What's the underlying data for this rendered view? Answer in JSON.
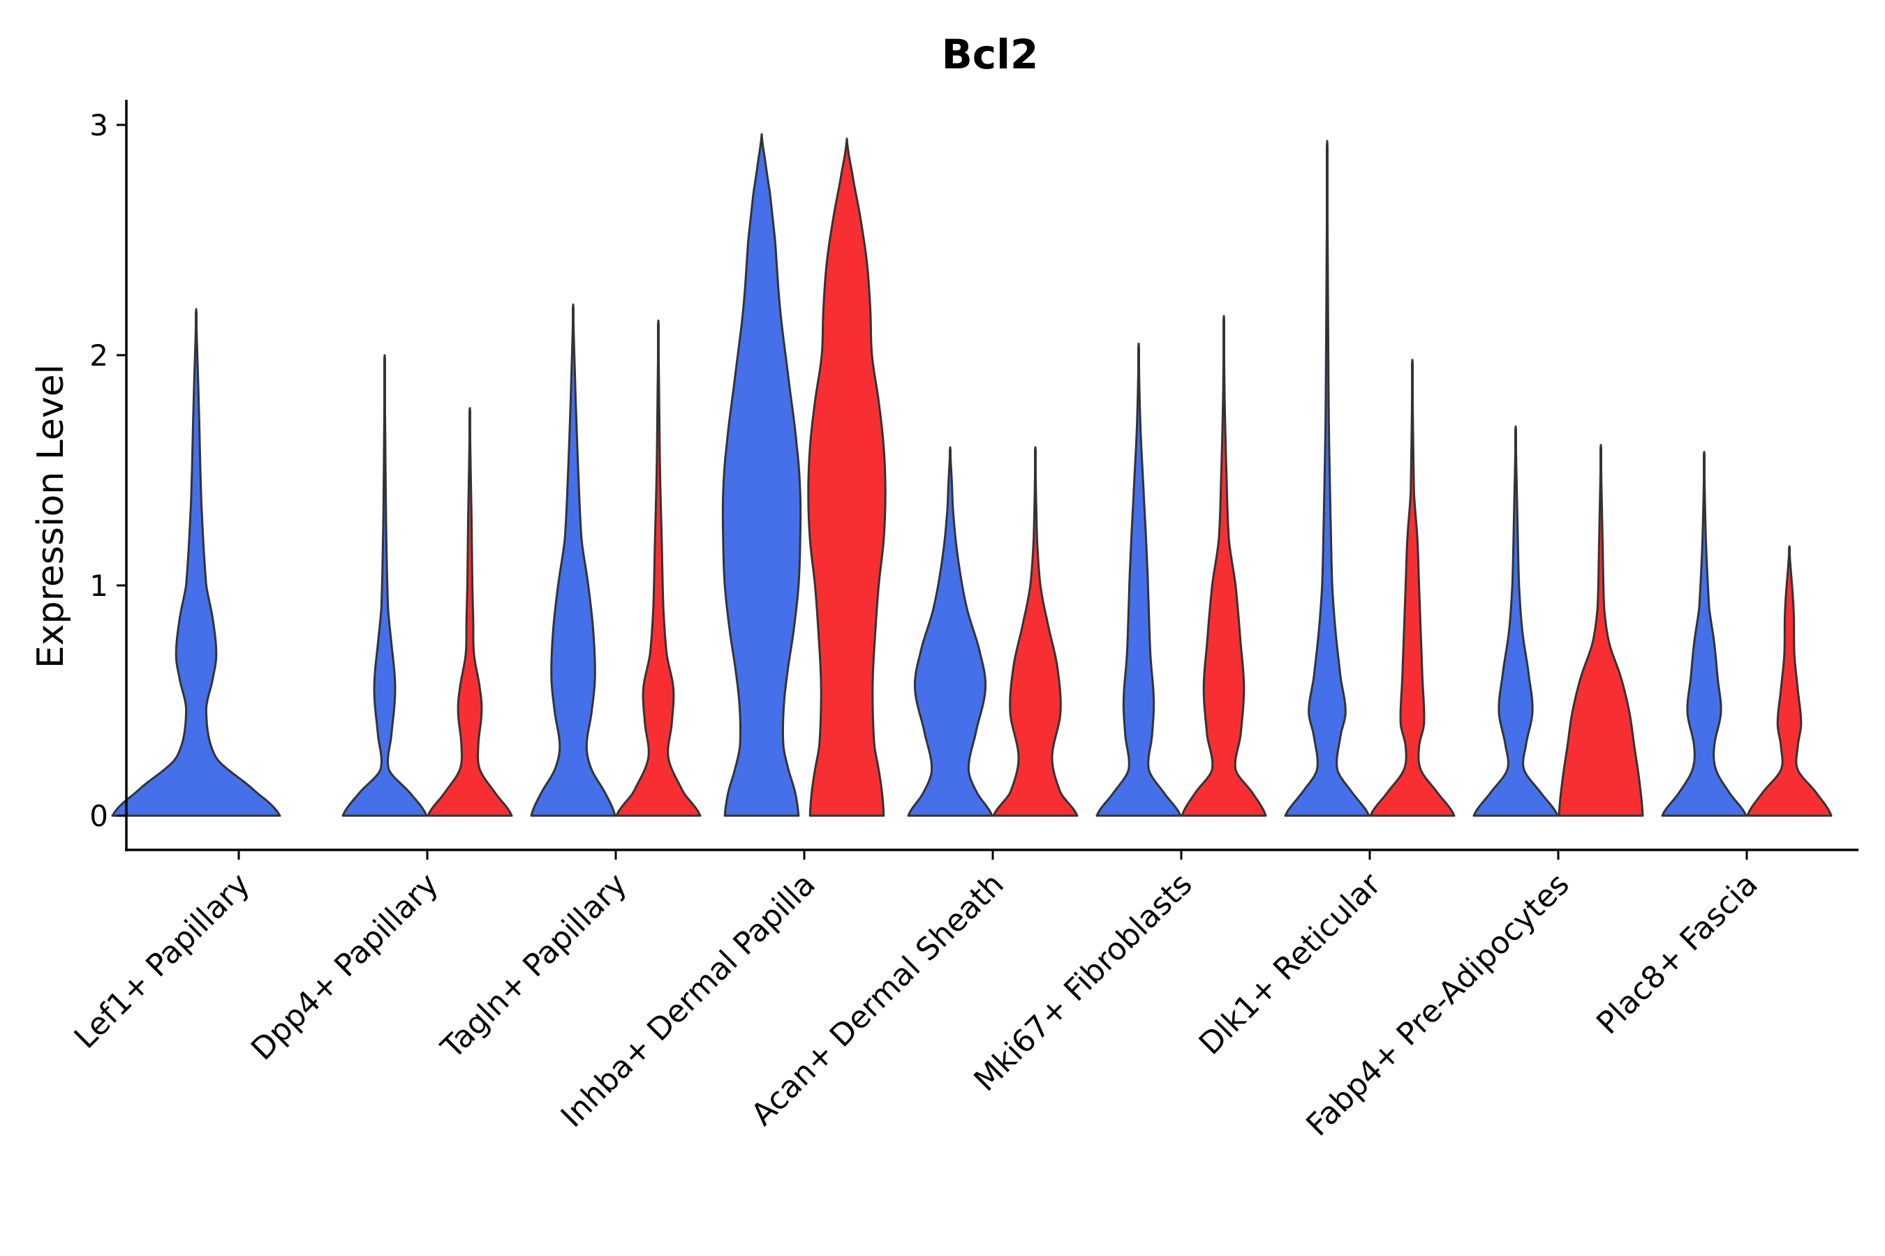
{
  "chart_data": {
    "type": "violin",
    "title": "Bcl2",
    "xlabel": "",
    "ylabel": "Expression Level",
    "ylim": [
      -0.15,
      3.12
    ],
    "yticks": [
      0,
      1,
      2,
      3
    ],
    "categories": [
      "Lef1+ Papillary",
      "Dpp4+ Papillary",
      "Tagln+ Papillary",
      "Inhba+ Dermal Papilla",
      "Acan+ Dermal Sheath",
      "Mki67+ Fibroblasts",
      "Dlk1+ Reticular",
      "Fabp4+ Pre-Adipocytes",
      "Plac8+ Fascia"
    ],
    "colors": {
      "blue": "#4570EA",
      "red": "#F72F33"
    },
    "violins": [
      {
        "category": "Lef1+ Papillary",
        "color": "blue",
        "max": 2.2,
        "profile": [
          [
            0,
            1.0
          ],
          [
            0.1,
            0.72
          ],
          [
            0.25,
            0.24
          ],
          [
            0.45,
            0.12
          ],
          [
            0.6,
            0.2
          ],
          [
            0.7,
            0.24
          ],
          [
            0.85,
            0.2
          ],
          [
            1.0,
            0.12
          ],
          [
            1.3,
            0.07
          ],
          [
            1.5,
            0.05
          ],
          [
            1.8,
            0.03
          ],
          [
            2.2,
            0
          ]
        ]
      },
      {
        "category": "Dpp4+ Papillary",
        "color": "blue",
        "max": 2.0,
        "profile": [
          [
            0,
            0.5
          ],
          [
            0.1,
            0.3
          ],
          [
            0.2,
            0.05
          ],
          [
            0.35,
            0.08
          ],
          [
            0.5,
            0.12
          ],
          [
            0.6,
            0.12
          ],
          [
            0.75,
            0.08
          ],
          [
            0.9,
            0.04
          ],
          [
            1.2,
            0.02
          ],
          [
            1.5,
            0.01
          ],
          [
            2.0,
            0
          ]
        ]
      },
      {
        "category": "Dpp4+ Papillary",
        "color": "red",
        "max": 1.77,
        "profile": [
          [
            0,
            0.5
          ],
          [
            0.1,
            0.3
          ],
          [
            0.2,
            0.12
          ],
          [
            0.3,
            0.1
          ],
          [
            0.45,
            0.14
          ],
          [
            0.55,
            0.12
          ],
          [
            0.7,
            0.05
          ],
          [
            0.85,
            0.04
          ],
          [
            1.0,
            0.03
          ],
          [
            1.3,
            0.02
          ],
          [
            1.5,
            0.01
          ],
          [
            1.77,
            0
          ]
        ]
      },
      {
        "category": "Tagln+ Papillary",
        "color": "blue",
        "max": 2.22,
        "profile": [
          [
            0,
            0.5
          ],
          [
            0.1,
            0.38
          ],
          [
            0.2,
            0.22
          ],
          [
            0.3,
            0.16
          ],
          [
            0.45,
            0.22
          ],
          [
            0.6,
            0.26
          ],
          [
            0.8,
            0.24
          ],
          [
            1.0,
            0.18
          ],
          [
            1.2,
            0.1
          ],
          [
            1.5,
            0.06
          ],
          [
            1.8,
            0.03
          ],
          [
            2.22,
            0
          ]
        ]
      },
      {
        "category": "Tagln+ Papillary",
        "color": "red",
        "max": 2.15,
        "profile": [
          [
            0,
            0.5
          ],
          [
            0.1,
            0.3
          ],
          [
            0.25,
            0.12
          ],
          [
            0.4,
            0.16
          ],
          [
            0.55,
            0.18
          ],
          [
            0.7,
            0.1
          ],
          [
            0.9,
            0.06
          ],
          [
            1.2,
            0.04
          ],
          [
            1.5,
            0.02
          ],
          [
            1.8,
            0.01
          ],
          [
            2.15,
            0
          ]
        ]
      },
      {
        "category": "Inhba+ Dermal Papilla",
        "color": "blue",
        "max": 2.96,
        "profile": [
          [
            0,
            0.44
          ],
          [
            0.1,
            0.4
          ],
          [
            0.2,
            0.32
          ],
          [
            0.3,
            0.26
          ],
          [
            0.45,
            0.26
          ],
          [
            0.6,
            0.3
          ],
          [
            0.8,
            0.38
          ],
          [
            1.0,
            0.44
          ],
          [
            1.2,
            0.46
          ],
          [
            1.4,
            0.46
          ],
          [
            1.6,
            0.42
          ],
          [
            1.9,
            0.32
          ],
          [
            2.2,
            0.22
          ],
          [
            2.5,
            0.16
          ],
          [
            2.7,
            0.1
          ],
          [
            2.85,
            0.04
          ],
          [
            2.96,
            0
          ]
        ]
      },
      {
        "category": "Inhba+ Dermal Papilla",
        "color": "red",
        "max": 2.94,
        "profile": [
          [
            0,
            0.44
          ],
          [
            0.1,
            0.42
          ],
          [
            0.2,
            0.38
          ],
          [
            0.3,
            0.33
          ],
          [
            0.45,
            0.31
          ],
          [
            0.6,
            0.31
          ],
          [
            0.8,
            0.34
          ],
          [
            1.0,
            0.38
          ],
          [
            1.2,
            0.44
          ],
          [
            1.4,
            0.46
          ],
          [
            1.6,
            0.44
          ],
          [
            1.8,
            0.38
          ],
          [
            2.0,
            0.3
          ],
          [
            2.2,
            0.28
          ],
          [
            2.4,
            0.24
          ],
          [
            2.6,
            0.16
          ],
          [
            2.8,
            0.06
          ],
          [
            2.94,
            0
          ]
        ]
      },
      {
        "category": "Acan+ Dermal Sheath",
        "color": "blue",
        "max": 1.6,
        "profile": [
          [
            0,
            0.5
          ],
          [
            0.1,
            0.32
          ],
          [
            0.2,
            0.22
          ],
          [
            0.35,
            0.3
          ],
          [
            0.55,
            0.42
          ],
          [
            0.7,
            0.36
          ],
          [
            0.9,
            0.2
          ],
          [
            1.1,
            0.1
          ],
          [
            1.3,
            0.04
          ],
          [
            1.45,
            0.02
          ],
          [
            1.6,
            0
          ]
        ]
      },
      {
        "category": "Acan+ Dermal Sheath",
        "color": "red",
        "max": 1.6,
        "profile": [
          [
            0,
            0.5
          ],
          [
            0.1,
            0.3
          ],
          [
            0.25,
            0.2
          ],
          [
            0.45,
            0.3
          ],
          [
            0.65,
            0.26
          ],
          [
            0.85,
            0.14
          ],
          [
            1.0,
            0.06
          ],
          [
            1.2,
            0.02
          ],
          [
            1.6,
            0
          ]
        ]
      },
      {
        "category": "Mki67+ Fibroblasts",
        "color": "blue",
        "max": 2.05,
        "profile": [
          [
            0,
            0.5
          ],
          [
            0.1,
            0.3
          ],
          [
            0.2,
            0.12
          ],
          [
            0.35,
            0.16
          ],
          [
            0.5,
            0.18
          ],
          [
            0.7,
            0.14
          ],
          [
            0.9,
            0.12
          ],
          [
            1.1,
            0.1
          ],
          [
            1.4,
            0.06
          ],
          [
            1.7,
            0.02
          ],
          [
            2.05,
            0
          ]
        ]
      },
      {
        "category": "Mki67+ Fibroblasts",
        "color": "red",
        "max": 2.17,
        "profile": [
          [
            0,
            0.5
          ],
          [
            0.1,
            0.34
          ],
          [
            0.2,
            0.14
          ],
          [
            0.35,
            0.2
          ],
          [
            0.55,
            0.24
          ],
          [
            0.75,
            0.2
          ],
          [
            1.0,
            0.14
          ],
          [
            1.2,
            0.06
          ],
          [
            1.5,
            0.03
          ],
          [
            1.8,
            0.01
          ],
          [
            2.17,
            0
          ]
        ]
      },
      {
        "category": "Dlk1+ Reticular",
        "color": "blue",
        "max": 2.93,
        "profile": [
          [
            0,
            0.5
          ],
          [
            0.1,
            0.3
          ],
          [
            0.2,
            0.12
          ],
          [
            0.35,
            0.16
          ],
          [
            0.45,
            0.22
          ],
          [
            0.6,
            0.16
          ],
          [
            0.8,
            0.1
          ],
          [
            1.0,
            0.06
          ],
          [
            1.3,
            0.04
          ],
          [
            1.7,
            0.02
          ],
          [
            2.2,
            0.01
          ],
          [
            2.93,
            0
          ]
        ]
      },
      {
        "category": "Dlk1+ Reticular",
        "color": "red",
        "max": 1.98,
        "profile": [
          [
            0,
            0.5
          ],
          [
            0.1,
            0.3
          ],
          [
            0.2,
            0.1
          ],
          [
            0.3,
            0.08
          ],
          [
            0.4,
            0.14
          ],
          [
            0.6,
            0.12
          ],
          [
            0.8,
            0.1
          ],
          [
            1.0,
            0.08
          ],
          [
            1.2,
            0.06
          ],
          [
            1.4,
            0.02
          ],
          [
            1.98,
            0
          ]
        ]
      },
      {
        "category": "Fabp4+ Pre-Adipocytes",
        "color": "blue",
        "max": 1.69,
        "profile": [
          [
            0,
            0.5
          ],
          [
            0.1,
            0.3
          ],
          [
            0.2,
            0.1
          ],
          [
            0.3,
            0.12
          ],
          [
            0.45,
            0.2
          ],
          [
            0.6,
            0.16
          ],
          [
            0.8,
            0.08
          ],
          [
            1.0,
            0.04
          ],
          [
            1.3,
            0.02
          ],
          [
            1.69,
            0
          ]
        ]
      },
      {
        "category": "Fabp4+ Pre-Adipocytes",
        "color": "red",
        "max": 1.61,
        "profile": [
          [
            0,
            0.5
          ],
          [
            0.15,
            0.46
          ],
          [
            0.3,
            0.4
          ],
          [
            0.45,
            0.34
          ],
          [
            0.6,
            0.24
          ],
          [
            0.75,
            0.1
          ],
          [
            0.9,
            0.04
          ],
          [
            1.2,
            0.02
          ],
          [
            1.61,
            0
          ]
        ]
      },
      {
        "category": "Plac8+ Fascia",
        "color": "blue",
        "max": 1.58,
        "profile": [
          [
            0,
            0.5
          ],
          [
            0.1,
            0.3
          ],
          [
            0.2,
            0.14
          ],
          [
            0.3,
            0.12
          ],
          [
            0.45,
            0.2
          ],
          [
            0.6,
            0.16
          ],
          [
            0.75,
            0.12
          ],
          [
            0.9,
            0.06
          ],
          [
            1.2,
            0.02
          ],
          [
            1.58,
            0
          ]
        ]
      },
      {
        "category": "Plac8+ Fascia",
        "color": "red",
        "max": 1.17,
        "profile": [
          [
            0,
            0.5
          ],
          [
            0.1,
            0.32
          ],
          [
            0.2,
            0.1
          ],
          [
            0.3,
            0.1
          ],
          [
            0.4,
            0.14
          ],
          [
            0.55,
            0.1
          ],
          [
            0.7,
            0.06
          ],
          [
            0.9,
            0.05
          ],
          [
            1.17,
            0
          ]
        ]
      }
    ]
  }
}
